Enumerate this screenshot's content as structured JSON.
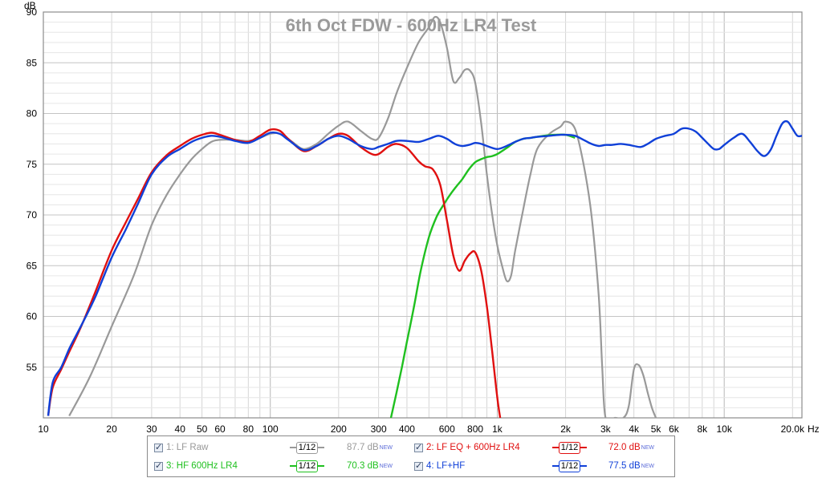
{
  "chart_data": {
    "type": "line",
    "title": "6th Oct FDW - 600Hz LR4 Test",
    "ylabel": "dB",
    "xlabel": "Hz",
    "xscale": "log",
    "xlim": [
      10,
      22000
    ],
    "ylim": [
      50,
      90
    ],
    "grid": true,
    "y_ticks": [
      "55",
      "60",
      "65",
      "70",
      "75",
      "80",
      "85",
      "90"
    ],
    "x_ticks": [
      {
        "value": 10,
        "label": "10"
      },
      {
        "value": 20,
        "label": "20"
      },
      {
        "value": 30,
        "label": "30"
      },
      {
        "value": 40,
        "label": "40"
      },
      {
        "value": 50,
        "label": "50"
      },
      {
        "value": 60,
        "label": "60"
      },
      {
        "value": 80,
        "label": "80"
      },
      {
        "value": 100,
        "label": "100"
      },
      {
        "value": 200,
        "label": "200"
      },
      {
        "value": 300,
        "label": "300"
      },
      {
        "value": 400,
        "label": "400"
      },
      {
        "value": 600,
        "label": "600"
      },
      {
        "value": 800,
        "label": "800"
      },
      {
        "value": 1000,
        "label": "1k"
      },
      {
        "value": 2000,
        "label": "2k"
      },
      {
        "value": 3000,
        "label": "3k"
      },
      {
        "value": 4000,
        "label": "4k"
      },
      {
        "value": 5000,
        "label": "5k"
      },
      {
        "value": 6000,
        "label": "6k"
      },
      {
        "value": 8000,
        "label": "8k"
      },
      {
        "value": 10000,
        "label": "10k"
      },
      {
        "value": 20000,
        "label": "20.0k"
      }
    ],
    "series": [
      {
        "name": "1: LF Raw",
        "color": "#999999",
        "x": [
          13,
          16,
          20,
          25,
          30,
          35,
          40,
          45,
          50,
          55,
          60,
          70,
          80,
          90,
          100,
          110,
          125,
          140,
          160,
          180,
          200,
          220,
          250,
          280,
          300,
          330,
          360,
          400,
          450,
          500,
          530,
          560,
          600,
          640,
          680,
          720,
          760,
          800,
          850,
          900,
          950,
          1000,
          1050,
          1100,
          1150,
          1200,
          1300,
          1400,
          1500,
          1700,
          1900,
          2000,
          2200,
          2400,
          2600,
          2800,
          2900,
          3000,
          3300,
          3600,
          3800,
          4000,
          4200,
          4400,
          4600,
          4800,
          5000
        ],
        "y": [
          50.2,
          54,
          59,
          64,
          69,
          72,
          74,
          75.5,
          76.5,
          77.2,
          77.4,
          77.4,
          77.3,
          77.6,
          78,
          78,
          77.2,
          76.5,
          77,
          78,
          78.8,
          79.2,
          78.3,
          77.5,
          77.6,
          79.5,
          82,
          84.5,
          87,
          88.5,
          89.5,
          89,
          86.5,
          83.2,
          83.5,
          84.3,
          84.2,
          83,
          79,
          74,
          70,
          67,
          65,
          63.5,
          64,
          66.5,
          70.5,
          74,
          76.5,
          78,
          78.7,
          79.2,
          78.5,
          75,
          70,
          62,
          55,
          50,
          50,
          50,
          51.2,
          54.8,
          55.2,
          54.2,
          52.5,
          51,
          50
        ]
      },
      {
        "name": "2: LF EQ + 600Hz LR4",
        "color": "#e01010",
        "x": [
          10.5,
          11,
          12,
          13,
          14,
          15,
          17,
          20,
          23,
          26,
          30,
          35,
          40,
          45,
          50,
          55,
          60,
          70,
          80,
          90,
          100,
          110,
          120,
          140,
          160,
          180,
          200,
          220,
          250,
          280,
          300,
          330,
          360,
          400,
          450,
          480,
          520,
          560,
          600,
          640,
          680,
          720,
          760,
          800,
          850,
          900,
          950,
          1000,
          1030
        ],
        "y": [
          50.2,
          53,
          54.8,
          56.5,
          58,
          59.5,
          62.5,
          66.5,
          69.2,
          71.5,
          74.2,
          75.9,
          76.8,
          77.5,
          77.9,
          78.1,
          77.9,
          77.4,
          77.2,
          77.8,
          78.4,
          78.3,
          77.5,
          76.3,
          76.8,
          77.5,
          78,
          77.8,
          76.7,
          76,
          76,
          76.7,
          77,
          76.6,
          75.3,
          74.8,
          74.5,
          73,
          69.5,
          66,
          64.5,
          65.5,
          66.2,
          66.3,
          64.5,
          61,
          56.5,
          52,
          50
        ]
      },
      {
        "name": "3: HF 600Hz LR4",
        "color": "#1fc01f",
        "x": [
          340,
          360,
          380,
          400,
          430,
          460,
          500,
          540,
          580,
          620,
          660,
          700,
          750,
          800,
          850,
          900,
          950,
          1000,
          1100,
          1200,
          1300,
          1400,
          1500,
          1600,
          1800,
          2000,
          2200
        ],
        "y": [
          50,
          52.5,
          55,
          57.5,
          61,
          64.5,
          67.8,
          69.8,
          71,
          72,
          72.8,
          73.5,
          74.5,
          75.2,
          75.5,
          75.7,
          75.8,
          76,
          76.6,
          77.2,
          77.5,
          77.6,
          77.7,
          77.8,
          77.9,
          77.9,
          77.6
        ]
      },
      {
        "name": "4: LF+HF",
        "color": "#1040d8",
        "x": [
          10.5,
          11,
          12,
          13,
          14,
          15,
          17,
          20,
          23,
          26,
          30,
          35,
          40,
          45,
          50,
          55,
          60,
          70,
          80,
          90,
          100,
          110,
          120,
          140,
          160,
          180,
          200,
          220,
          250,
          280,
          300,
          330,
          360,
          400,
          450,
          500,
          550,
          600,
          650,
          700,
          750,
          800,
          850,
          900,
          1000,
          1100,
          1200,
          1300,
          1400,
          1500,
          1700,
          1900,
          2000,
          2200,
          2400,
          2600,
          2800,
          3000,
          3200,
          3500,
          3800,
          4000,
          4300,
          4600,
          5000,
          5500,
          6000,
          6500,
          7000,
          7500,
          8000,
          8500,
          9000,
          9500,
          10000,
          11000,
          12000,
          13000,
          14000,
          15000,
          16000,
          17000,
          18000,
          19000,
          20000,
          21000,
          22000
        ],
        "y": [
          50.2,
          53.5,
          55,
          56.8,
          58.2,
          59.5,
          62,
          65.8,
          68.5,
          71,
          74,
          75.7,
          76.5,
          77.2,
          77.6,
          77.8,
          77.7,
          77.3,
          77.1,
          77.6,
          78.1,
          78,
          77.4,
          76.4,
          76.8,
          77.5,
          77.8,
          77.5,
          76.8,
          76.5,
          76.7,
          77,
          77.3,
          77.3,
          77.2,
          77.5,
          77.8,
          77.5,
          77,
          76.8,
          76.9,
          77.1,
          77,
          76.8,
          76.5,
          76.8,
          77.2,
          77.5,
          77.6,
          77.7,
          77.8,
          77.9,
          77.9,
          77.8,
          77.4,
          77,
          76.8,
          76.9,
          76.9,
          77,
          76.9,
          76.8,
          76.7,
          77,
          77.5,
          77.8,
          78,
          78.5,
          78.5,
          78.2,
          77.6,
          77,
          76.5,
          76.5,
          76.9,
          77.6,
          78,
          77.2,
          76.3,
          75.8,
          76.4,
          77.8,
          79,
          79.2,
          78.5,
          77.8,
          77.8
        ]
      }
    ]
  },
  "legend": {
    "items": [
      {
        "label": "1: LF Raw",
        "smoothing": "1/12",
        "value": "87.7 dB",
        "badge": "NEW",
        "color": "#999999"
      },
      {
        "label": "2: LF EQ + 600Hz LR4",
        "smoothing": "1/12",
        "value": "72.0 dB",
        "badge": "NEW",
        "color": "#e01010"
      },
      {
        "label": "3: HF 600Hz LR4",
        "smoothing": "1/12",
        "value": "70.3 dB",
        "badge": "NEW",
        "color": "#1fc01f"
      },
      {
        "label": "4: LF+HF",
        "smoothing": "1/12",
        "value": "77.5 dB",
        "badge": "NEW",
        "color": "#1040d8"
      }
    ]
  }
}
